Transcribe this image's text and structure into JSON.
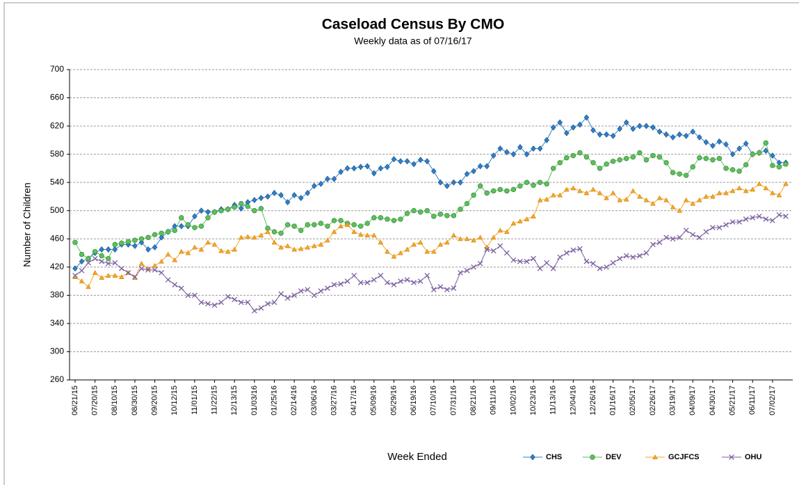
{
  "chart_data": {
    "type": "line",
    "title": "Caseload Census By CMO",
    "subtitle": "Weekly data as of 07/16/17",
    "xlabel": "Week Ended",
    "ylabel": "Number of Children",
    "categories": [
      "06/21/15",
      null,
      null,
      "07/20/15",
      null,
      null,
      "08/10/15",
      null,
      null,
      "08/30/15",
      null,
      null,
      "09/20/15",
      null,
      null,
      "10/12/15",
      null,
      null,
      "11/01/15",
      null,
      null,
      "11/22/15",
      null,
      null,
      "12/13/15",
      null,
      null,
      "01/03/16",
      null,
      null,
      "01/25/16",
      null,
      null,
      "02/14/16",
      null,
      null,
      "03/06/16",
      null,
      null,
      "03/27/16",
      null,
      null,
      "04/17/16",
      null,
      null,
      "05/09/16",
      null,
      null,
      "05/29/16",
      null,
      null,
      "06/19/16",
      null,
      null,
      "07/10/16",
      null,
      null,
      "07/31/16",
      null,
      null,
      "08/21/16",
      null,
      null,
      "09/11/16",
      null,
      null,
      "10/02/16",
      null,
      null,
      "10/23/16",
      null,
      null,
      "11/13/16",
      null,
      null,
      "12/04/16",
      null,
      null,
      "12/26/16",
      null,
      null,
      "01/16/17",
      null,
      null,
      "02/05/17",
      null,
      null,
      "02/26/17",
      null,
      null,
      "03/19/17",
      null,
      null,
      "04/09/17",
      null,
      null,
      "04/30/17",
      null,
      null,
      "05/21/17",
      null,
      null,
      "06/11/17",
      null,
      null,
      "07/02/17",
      null,
      null
    ],
    "series": [
      {
        "name": "CHS",
        "color": "#2e7fc8",
        "marker": "diamond",
        "values": [
          418,
          428,
          432,
          440,
          445,
          445,
          445,
          452,
          452,
          450,
          455,
          445,
          448,
          462,
          470,
          478,
          478,
          478,
          492,
          500,
          498,
          498,
          502,
          502,
          508,
          503,
          512,
          515,
          518,
          520,
          525,
          522,
          512,
          522,
          518,
          525,
          535,
          538,
          545,
          545,
          555,
          560,
          560,
          562,
          563,
          553,
          560,
          562,
          573,
          570,
          570,
          566,
          572,
          570,
          556,
          540,
          535,
          540,
          540,
          552,
          556,
          563,
          563,
          578,
          588,
          583,
          580,
          590,
          580,
          588,
          588,
          600,
          618,
          625,
          610,
          618,
          622,
          632,
          614,
          608,
          608,
          606,
          616,
          625,
          616,
          620,
          620,
          618,
          612,
          608,
          604,
          608,
          606,
          612,
          604,
          597,
          592,
          598,
          594,
          580,
          588,
          595,
          580,
          582,
          585,
          578,
          568,
          568
        ]
      },
      {
        "name": "DEV",
        "color": "#5cbf5c",
        "marker": "circle",
        "values": [
          455,
          438,
          432,
          442,
          436,
          432,
          452,
          454,
          456,
          458,
          460,
          462,
          466,
          468,
          470,
          472,
          490,
          480,
          476,
          478,
          490,
          498,
          500,
          502,
          505,
          510,
          506,
          500,
          503,
          475,
          470,
          468,
          480,
          478,
          472,
          480,
          480,
          482,
          478,
          486,
          486,
          482,
          480,
          478,
          482,
          490,
          490,
          488,
          486,
          488,
          496,
          500,
          498,
          500,
          492,
          495,
          493,
          493,
          502,
          510,
          522,
          535,
          525,
          528,
          530,
          528,
          530,
          535,
          540,
          536,
          540,
          538,
          560,
          568,
          575,
          578,
          582,
          576,
          568,
          560,
          566,
          570,
          572,
          574,
          576,
          582,
          572,
          578,
          576,
          568,
          554,
          552,
          550,
          562,
          575,
          574,
          572,
          574,
          560,
          558,
          556,
          565,
          580,
          582,
          596,
          564,
          562,
          566
        ]
      },
      {
        "name": "GCJFCS",
        "color": "#f5a623",
        "marker": "triangle",
        "values": [
          406,
          400,
          392,
          412,
          405,
          408,
          408,
          406,
          412,
          405,
          425,
          418,
          422,
          428,
          438,
          430,
          442,
          440,
          448,
          445,
          455,
          452,
          443,
          442,
          445,
          462,
          463,
          462,
          465,
          470,
          455,
          448,
          450,
          445,
          446,
          448,
          450,
          452,
          458,
          470,
          478,
          480,
          470,
          466,
          465,
          465,
          455,
          442,
          435,
          440,
          445,
          452,
          455,
          442,
          442,
          452,
          455,
          465,
          460,
          460,
          458,
          462,
          448,
          462,
          472,
          470,
          482,
          485,
          488,
          492,
          515,
          516,
          522,
          522,
          530,
          532,
          528,
          525,
          530,
          525,
          518,
          525,
          515,
          516,
          528,
          520,
          515,
          510,
          518,
          515,
          505,
          500,
          515,
          510,
          515,
          520,
          520,
          525,
          525,
          528,
          532,
          528,
          530,
          538,
          532,
          525,
          522,
          538
        ]
      },
      {
        "name": "OHU",
        "color": "#7b5fa0",
        "marker": "x",
        "values": [
          408,
          415,
          426,
          432,
          428,
          425,
          426,
          418,
          412,
          406,
          418,
          416,
          416,
          412,
          402,
          395,
          390,
          380,
          380,
          370,
          368,
          366,
          370,
          378,
          374,
          370,
          370,
          358,
          362,
          368,
          370,
          382,
          376,
          380,
          386,
          388,
          380,
          386,
          390,
          395,
          396,
          400,
          408,
          398,
          398,
          402,
          408,
          398,
          395,
          400,
          402,
          398,
          400,
          408,
          388,
          392,
          388,
          390,
          412,
          415,
          420,
          425,
          445,
          443,
          450,
          440,
          430,
          428,
          428,
          432,
          418,
          426,
          418,
          434,
          440,
          444,
          446,
          428,
          425,
          418,
          420,
          426,
          432,
          436,
          434,
          436,
          440,
          452,
          455,
          462,
          460,
          462,
          472,
          466,
          462,
          470,
          476,
          476,
          480,
          484,
          484,
          488,
          490,
          492,
          488,
          486,
          494,
          492
        ]
      }
    ],
    "ylim": [
      260,
      700
    ],
    "yticks": [
      260,
      300,
      340,
      380,
      420,
      460,
      500,
      540,
      580,
      620,
      660,
      700
    ],
    "grid": true,
    "legend": "bottom"
  }
}
